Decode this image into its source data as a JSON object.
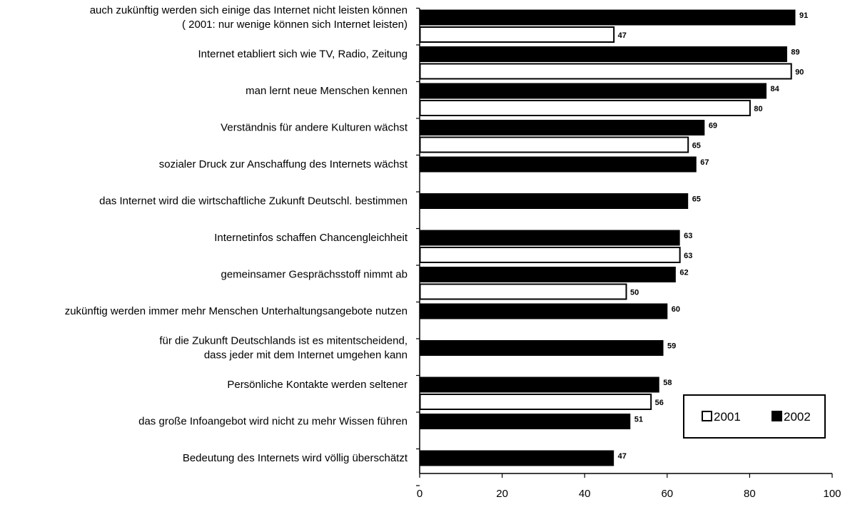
{
  "chart_data": {
    "type": "bar",
    "orientation": "horizontal",
    "categories": [
      [
        "auch zukünftig werden sich einige das Internet nicht leisten können",
        "( 2001: nur wenige können sich Internet leisten)"
      ],
      [
        "Internet etabliert sich wie TV, Radio, Zeitung"
      ],
      [
        "man lernt neue Menschen kennen"
      ],
      [
        "Verständnis für andere Kulturen wächst"
      ],
      [
        "sozialer Druck zur Anschaffung des Internets wächst"
      ],
      [
        "das Internet wird die wirtschaftliche Zukunft Deutschl. bestimmen"
      ],
      [
        "Internetinfos schaffen Chancengleichheit"
      ],
      [
        "gemeinsamer Gesprächsstoff nimmt ab"
      ],
      [
        "zukünftig werden immer mehr Menschen Unterhaltungsangebote nutzen"
      ],
      [
        "für die Zukunft Deutschlands ist es mitentscheidend,",
        "dass jeder mit dem Internet umgehen kann"
      ],
      [
        "Persönliche Kontakte werden seltener"
      ],
      [
        "das große Infoangebot wird nicht zu mehr Wissen führen"
      ],
      [
        "Bedeutung des Internets wird völlig überschätzt"
      ]
    ],
    "series": [
      {
        "name": "2002",
        "color": "#000000",
        "values": [
          91,
          89,
          84,
          69,
          67,
          65,
          63,
          62,
          60,
          59,
          58,
          51,
          47
        ]
      },
      {
        "name": "2001",
        "color": "#ffffff",
        "values": [
          47,
          90,
          80,
          65,
          null,
          null,
          63,
          50,
          null,
          null,
          56,
          null,
          null
        ]
      }
    ],
    "xlim": [
      0,
      100
    ],
    "xticks": [
      0,
      20,
      40,
      60,
      80,
      100
    ],
    "legend": {
      "position": "bottom-right",
      "order": [
        "2001",
        "2002"
      ]
    },
    "grid": false
  }
}
